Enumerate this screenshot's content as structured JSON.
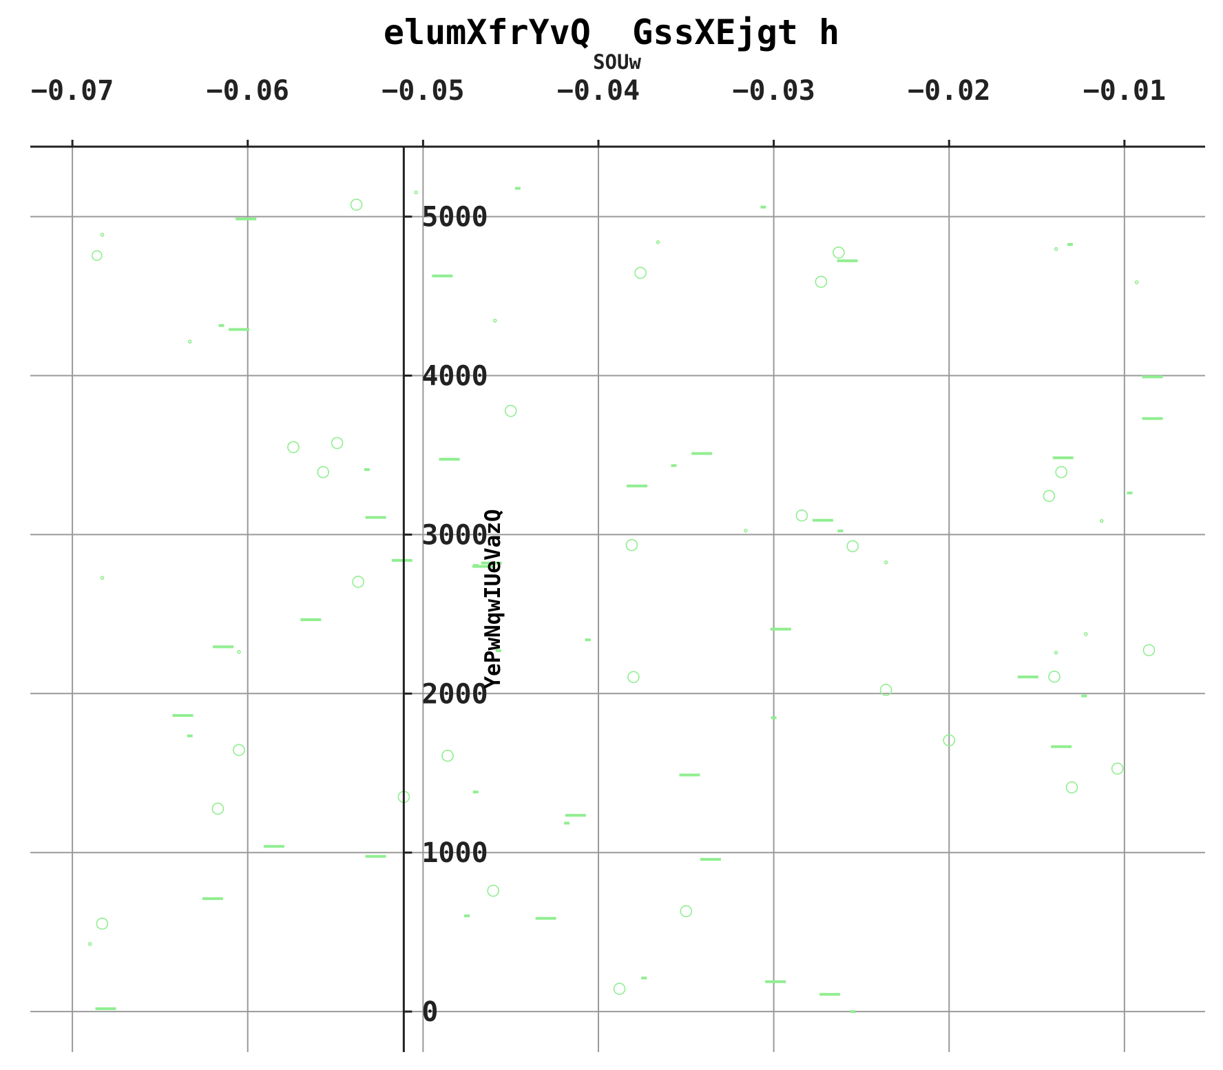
{
  "chart_data": {
    "type": "scatter",
    "title": "elumXfrYvQ  GssXEjgt h",
    "xlabel": "SOUw",
    "ylabel": "YePwNqwIUeVazQ",
    "xlim": [
      -0.0724,
      -0.0054
    ],
    "ylim": [
      -255,
      5440
    ],
    "x_ticks": [
      -0.07,
      -0.06,
      -0.05,
      -0.04,
      -0.03,
      -0.02,
      -0.01
    ],
    "x_tick_labels": [
      "−0.07",
      "−0.06",
      "−0.05",
      "−0.04",
      "−0.03",
      "−0.02",
      "−0.01"
    ],
    "y_ticks": [
      0,
      1000,
      2000,
      3000,
      4000,
      5000
    ],
    "y_tick_labels": [
      "0",
      "1000",
      "2000",
      "3000",
      "4000",
      "5000"
    ],
    "x_axis_position": "top",
    "y_axis_at_x": -0.0511,
    "grid": true,
    "legend": "none",
    "marker_color": "#90ee90",
    "series": [
      {
        "marker": "circle",
        "points": [
          [
            -0.0686,
            4755,
            7
          ],
          [
            -0.0683,
            4886,
            2
          ],
          [
            -0.0683,
            2728,
            2
          ],
          [
            -0.0683,
            553,
            8
          ],
          [
            -0.069,
            425,
            2
          ],
          [
            -0.0633,
            4214,
            2
          ],
          [
            -0.0605,
            2262,
            2
          ],
          [
            -0.0605,
            1645,
            8
          ],
          [
            -0.0617,
            1276,
            8
          ],
          [
            -0.0574,
            3550,
            8
          ],
          [
            -0.0557,
            3393,
            8
          ],
          [
            -0.0549,
            3576,
            8
          ],
          [
            -0.0538,
            5075,
            8
          ],
          [
            -0.0537,
            2703,
            8
          ],
          [
            -0.0511,
            1350,
            8
          ],
          [
            -0.0504,
            5152,
            2
          ],
          [
            -0.0486,
            1609,
            8
          ],
          [
            -0.046,
            760,
            8
          ],
          [
            -0.0459,
            4346,
            2
          ],
          [
            -0.045,
            3778,
            8
          ],
          [
            -0.0381,
            2934,
            8
          ],
          [
            -0.038,
            2104,
            8
          ],
          [
            -0.0376,
            4646,
            8
          ],
          [
            -0.0388,
            143,
            8
          ],
          [
            -0.0366,
            4839,
            2
          ],
          [
            -0.035,
            631,
            8
          ],
          [
            -0.0316,
            3025,
            2
          ],
          [
            -0.0284,
            3120,
            8
          ],
          [
            -0.0273,
            4590,
            8
          ],
          [
            -0.0263,
            4774,
            8
          ],
          [
            -0.0255,
            2927,
            8
          ],
          [
            -0.0236,
            2023,
            8
          ],
          [
            -0.0236,
            2825,
            2
          ],
          [
            -0.02,
            1706,
            8
          ],
          [
            -0.0143,
            3243,
            8
          ],
          [
            -0.014,
            2106,
            8
          ],
          [
            -0.0139,
            4796,
            2
          ],
          [
            -0.0139,
            2258,
            2
          ],
          [
            -0.0136,
            3393,
            8
          ],
          [
            -0.013,
            1410,
            8
          ],
          [
            -0.0122,
            2374,
            2
          ],
          [
            -0.0113,
            3086,
            2
          ],
          [
            -0.0104,
            1528,
            8
          ],
          [
            -0.0093,
            4587,
            2
          ],
          [
            -0.0086,
            2273,
            8
          ]
        ]
      },
      {
        "marker": "hline",
        "points": [
          [
            -0.0681,
            18,
            30
          ],
          [
            -0.0601,
            4985,
            30
          ],
          [
            -0.0605,
            4290,
            30
          ],
          [
            -0.0615,
            4315,
            8
          ],
          [
            -0.0637,
            1862,
            30
          ],
          [
            -0.0633,
            1734,
            8
          ],
          [
            -0.0614,
            2294,
            30
          ],
          [
            -0.0585,
            1039,
            30
          ],
          [
            -0.0564,
            2465,
            30
          ],
          [
            -0.062,
            710,
            30
          ],
          [
            -0.0527,
            3108,
            30
          ],
          [
            -0.0532,
            3409,
            8
          ],
          [
            -0.0512,
            2838,
            30
          ],
          [
            -0.0527,
            976,
            30
          ],
          [
            -0.0489,
            4627,
            30
          ],
          [
            -0.0485,
            3474,
            30
          ],
          [
            -0.0461,
            2821,
            30
          ],
          [
            -0.0466,
            2800,
            30
          ],
          [
            -0.047,
            2806,
            8
          ],
          [
            -0.0457,
            2270,
            8
          ],
          [
            -0.047,
            1381,
            8
          ],
          [
            -0.0475,
            602,
            8
          ],
          [
            -0.0446,
            5178,
            8
          ],
          [
            -0.043,
            586,
            30
          ],
          [
            -0.0413,
            1234,
            30
          ],
          [
            -0.0418,
            1185,
            8
          ],
          [
            -0.0406,
            2338,
            8
          ],
          [
            -0.0378,
            3306,
            30
          ],
          [
            -0.0374,
            211,
            8
          ],
          [
            -0.0341,
            3510,
            30
          ],
          [
            -0.0357,
            3434,
            8
          ],
          [
            -0.0348,
            1488,
            30
          ],
          [
            -0.0336,
            957,
            30
          ],
          [
            -0.0306,
            5060,
            8
          ],
          [
            -0.0296,
            2405,
            30
          ],
          [
            -0.03,
            1848,
            8
          ],
          [
            -0.0299,
            188,
            30
          ],
          [
            -0.0272,
            3090,
            30
          ],
          [
            -0.0258,
            4722,
            30
          ],
          [
            -0.0262,
            3023,
            8
          ],
          [
            -0.0268,
            108,
            30
          ],
          [
            -0.0255,
            0,
            8
          ],
          [
            -0.0155,
            2105,
            30
          ],
          [
            -0.0135,
            3483,
            30
          ],
          [
            -0.0136,
            1666,
            30
          ],
          [
            -0.0131,
            4825,
            8
          ],
          [
            -0.0123,
            1985,
            8
          ],
          [
            -0.0084,
            3992,
            30
          ],
          [
            -0.0084,
            3730,
            30
          ],
          [
            -0.0097,
            3262,
            8
          ]
        ]
      }
    ]
  }
}
